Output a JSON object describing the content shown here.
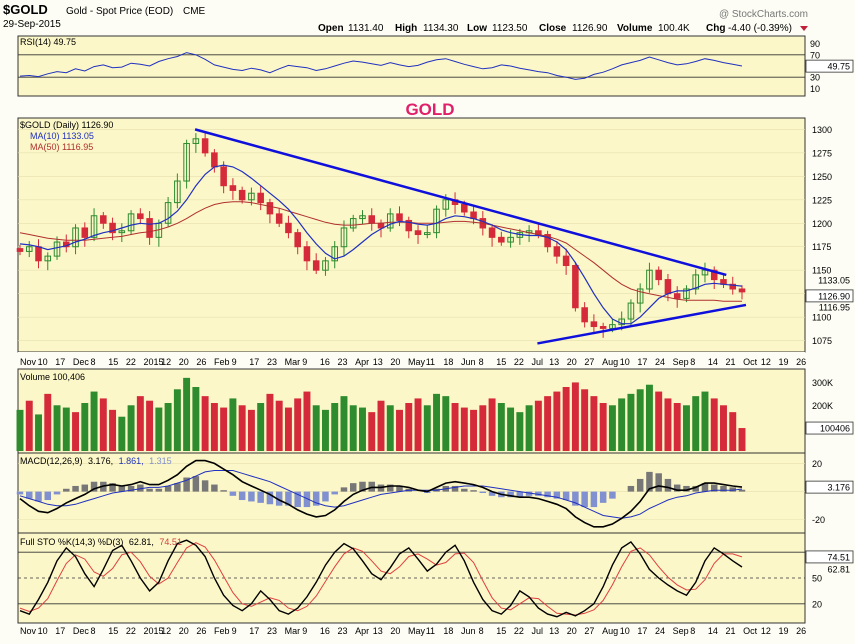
{
  "header": {
    "symbol": "$GOLD",
    "description": "Gold - Spot Price (EOD)",
    "exchange": "CME",
    "date": "29-Sep-2015",
    "watermark": "@ StockCharts.com",
    "open_label": "Open",
    "open": "1131.40",
    "high_label": "High",
    "high": "1134.30",
    "low_label": "Low",
    "low": "1123.50",
    "close_label": "Close",
    "close": "1126.90",
    "volume_label": "Volume",
    "volume": "100.4K",
    "chg_label": "Chg",
    "chg": "-4.40 (-0.39%)"
  },
  "annotation": "GOLD",
  "colors": {
    "background": "#fbf7c8",
    "up": "#2e8b2e",
    "down": "#d42a3a",
    "ma10": "#2030c0",
    "ma50": "#b03030",
    "trendline": "#1010dd",
    "title_red": "#e0206a",
    "fill_blue": "#8090d0"
  },
  "chart_data": [
    {
      "id": "rsi",
      "type": "line",
      "title": "RSI(14) 49.75",
      "value_label": "49.75",
      "ylim": [
        0,
        100
      ],
      "ticks": [
        "90",
        "70",
        "30",
        "10"
      ],
      "overbought": 70,
      "oversold": 30,
      "values": [
        32,
        33,
        31,
        36,
        40,
        38,
        45,
        41,
        49,
        52,
        47,
        48,
        55,
        53,
        50,
        58,
        63,
        67,
        74,
        70,
        62,
        52,
        48,
        44,
        42,
        46,
        43,
        38,
        45,
        51,
        49,
        47,
        42,
        45,
        50,
        55,
        59,
        57,
        54,
        51,
        56,
        52,
        49,
        51,
        57,
        61,
        63,
        58,
        53,
        49,
        45,
        47,
        52,
        50,
        46,
        43,
        40,
        38,
        33,
        30,
        26,
        28,
        35,
        39,
        45,
        52,
        56,
        60,
        66,
        61,
        56,
        52,
        54,
        58,
        63,
        60,
        56,
        53,
        50
      ]
    },
    {
      "id": "price",
      "type": "candlestick",
      "title": "$GOLD (Daily) 1126.90",
      "ma10_label": "MA(10) 1133.05",
      "ma50_label": "MA(50) 1116.95",
      "ylim": [
        1065,
        1310
      ],
      "y_ticks": [
        "1300",
        "1275",
        "1250",
        "1225",
        "1200",
        "1175",
        "1150",
        "1125",
        "1100",
        "1075"
      ],
      "right_labels": [
        "1133.05",
        "1126.90",
        "1116.95"
      ],
      "x_tick_labels": [
        "Nov",
        "10",
        "17",
        "Dec",
        "8",
        "15",
        "22",
        "2015",
        "12",
        "20",
        "26",
        "Feb",
        "9",
        "17",
        "23",
        "Mar",
        "9",
        "16",
        "23",
        "Apr",
        "13",
        "20",
        "May",
        "11",
        "18",
        "Jun",
        "8",
        "15",
        "22",
        "Jul",
        "13",
        "20",
        "27",
        "Aug",
        "10",
        "17",
        "24",
        "Sep",
        "8",
        "14",
        "21",
        "Oct",
        "12",
        "19",
        "26"
      ],
      "close": [
        1170,
        1175,
        1160,
        1165,
        1180,
        1175,
        1195,
        1185,
        1208,
        1200,
        1190,
        1192,
        1210,
        1205,
        1185,
        1200,
        1222,
        1245,
        1285,
        1290,
        1275,
        1260,
        1240,
        1235,
        1225,
        1232,
        1222,
        1210,
        1200,
        1190,
        1175,
        1160,
        1150,
        1160,
        1175,
        1195,
        1205,
        1208,
        1200,
        1195,
        1210,
        1203,
        1192,
        1188,
        1190,
        1215,
        1225,
        1220,
        1212,
        1205,
        1195,
        1185,
        1180,
        1185,
        1190,
        1192,
        1188,
        1175,
        1165,
        1155,
        1110,
        1095,
        1090,
        1088,
        1092,
        1098,
        1115,
        1130,
        1150,
        1140,
        1125,
        1120,
        1130,
        1145,
        1150,
        1140,
        1135,
        1130,
        1126.9
      ],
      "ma10": [
        1178,
        1177,
        1175,
        1172,
        1174,
        1176,
        1180,
        1183,
        1187,
        1190,
        1192,
        1195,
        1198,
        1200,
        1199,
        1200,
        1205,
        1213,
        1225,
        1240,
        1252,
        1260,
        1262,
        1260,
        1255,
        1248,
        1240,
        1232,
        1224,
        1215,
        1203,
        1190,
        1178,
        1168,
        1162,
        1165,
        1172,
        1180,
        1188,
        1194,
        1199,
        1202,
        1201,
        1199,
        1198,
        1200,
        1205,
        1208,
        1207,
        1205,
        1202,
        1198,
        1193,
        1190,
        1188,
        1187,
        1187,
        1185,
        1180,
        1172,
        1158,
        1142,
        1125,
        1110,
        1098,
        1093,
        1093,
        1100,
        1110,
        1120,
        1125,
        1128,
        1128,
        1131,
        1135,
        1136,
        1135,
        1134,
        1133.05
      ],
      "ma50": [
        1190,
        1188,
        1186,
        1184,
        1183,
        1182,
        1182,
        1182,
        1183,
        1184,
        1185,
        1186,
        1188,
        1190,
        1191,
        1193,
        1196,
        1200,
        1205,
        1211,
        1216,
        1220,
        1222,
        1223,
        1223,
        1222,
        1220,
        1218,
        1216,
        1213,
        1210,
        1207,
        1204,
        1201,
        1199,
        1198,
        1198,
        1199,
        1200,
        1200,
        1201,
        1201,
        1201,
        1200,
        1200,
        1200,
        1201,
        1202,
        1202,
        1201,
        1200,
        1198,
        1196,
        1194,
        1192,
        1190,
        1188,
        1186,
        1183,
        1179,
        1172,
        1165,
        1158,
        1150,
        1142,
        1135,
        1130,
        1127,
        1125,
        1123,
        1121,
        1119,
        1118,
        1118,
        1118,
        1118,
        1117,
        1117,
        1116.95
      ],
      "trendline_upper": [
        [
          0.225,
          1300
        ],
        [
          0.9,
          1145
        ]
      ],
      "trendline_lower": [
        [
          0.66,
          1072
        ],
        [
          0.925,
          1113
        ]
      ]
    },
    {
      "id": "volume",
      "type": "bar",
      "title": "Volume 100,406",
      "value_label": "100406",
      "ylim": [
        0,
        350000
      ],
      "ticks": [
        "300K",
        "200K",
        "100K"
      ],
      "values": [
        180000,
        220000,
        160000,
        250000,
        200000,
        190000,
        170000,
        210000,
        260000,
        230000,
        180000,
        150000,
        200000,
        240000,
        220000,
        190000,
        210000,
        270000,
        320000,
        280000,
        240000,
        210000,
        190000,
        230000,
        200000,
        180000,
        210000,
        250000,
        220000,
        190000,
        230000,
        260000,
        200000,
        180000,
        210000,
        240000,
        200000,
        190000,
        170000,
        220000,
        200000,
        180000,
        210000,
        230000,
        200000,
        250000,
        240000,
        210000,
        190000,
        180000,
        200000,
        230000,
        210000,
        190000,
        170000,
        200000,
        220000,
        240000,
        260000,
        280000,
        300000,
        270000,
        240000,
        210000,
        200000,
        230000,
        250000,
        270000,
        290000,
        260000,
        230000,
        210000,
        200000,
        240000,
        260000,
        230000,
        200000,
        170000,
        100406
      ],
      "up": [
        true,
        false,
        true,
        false,
        true,
        true,
        false,
        true,
        true,
        false,
        false,
        true,
        true,
        false,
        false,
        true,
        true,
        true,
        true,
        true,
        false,
        false,
        false,
        true,
        false,
        false,
        true,
        false,
        false,
        false,
        false,
        false,
        true,
        true,
        true,
        true,
        true,
        true,
        false,
        false,
        true,
        false,
        false,
        false,
        true,
        true,
        true,
        false,
        false,
        false,
        false,
        false,
        true,
        true,
        true,
        true,
        false,
        false,
        false,
        false,
        false,
        false,
        false,
        false,
        true,
        true,
        true,
        true,
        true,
        false,
        false,
        false,
        true,
        true,
        true,
        false,
        false,
        false,
        false
      ]
    },
    {
      "id": "macd",
      "type": "line",
      "title": "MACD(12,26,9)",
      "macd_label": "3.176,",
      "signal_label": "1.861,",
      "hist_label": "1.315",
      "value_label": "3.176",
      "ylim": [
        -28,
        26
      ],
      "ticks": [
        "20",
        "0",
        "-20"
      ],
      "macd": [
        -5,
        -10,
        -14,
        -15,
        -12,
        -8,
        -5,
        -2,
        2,
        4,
        5,
        4,
        5,
        7,
        5,
        5,
        8,
        12,
        18,
        22,
        22,
        20,
        16,
        12,
        7,
        4,
        1,
        -2,
        -6,
        -9,
        -13,
        -16,
        -18,
        -17,
        -13,
        -7,
        -2,
        1,
        3,
        3,
        4,
        4,
        3,
        1,
        0,
        3,
        6,
        7,
        6,
        5,
        3,
        0,
        -2,
        -3,
        -4,
        -4,
        -5,
        -7,
        -9,
        -12,
        -18,
        -22,
        -25,
        -25,
        -23,
        -19,
        -14,
        -7,
        2,
        4,
        3,
        1,
        1,
        3,
        6,
        6,
        5,
        4,
        3.176
      ],
      "signal": [
        -3,
        -5,
        -7,
        -9,
        -10,
        -10,
        -9,
        -7,
        -5,
        -3,
        -1,
        0,
        1,
        2,
        3,
        3,
        4,
        6,
        8,
        11,
        14,
        15,
        15,
        15,
        13,
        11,
        9,
        7,
        4,
        1,
        -2,
        -5,
        -8,
        -10,
        -11,
        -10,
        -8,
        -6,
        -4,
        -2,
        -1,
        0,
        1,
        1,
        1,
        1,
        2,
        3,
        4,
        4,
        4,
        3,
        2,
        1,
        0,
        -1,
        -2,
        -3,
        -4,
        -6,
        -8,
        -11,
        -14,
        -17,
        -18,
        -19,
        -18,
        -16,
        -12,
        -9,
        -6,
        -4,
        -3,
        -1,
        0,
        1,
        1,
        1,
        1.861
      ]
    },
    {
      "id": "sto",
      "type": "line",
      "title": "Full STO %K(14,3) %D(3)",
      "k_label": "62.81,",
      "d_label": "74.51",
      "right_labels": [
        "74.51",
        "62.81"
      ],
      "ylim": [
        0,
        100
      ],
      "ticks": [
        "80",
        "50",
        "20"
      ],
      "k": [
        12,
        8,
        25,
        45,
        70,
        85,
        75,
        55,
        40,
        60,
        82,
        88,
        70,
        50,
        35,
        45,
        70,
        90,
        94,
        88,
        75,
        50,
        30,
        18,
        12,
        20,
        35,
        25,
        12,
        8,
        15,
        28,
        45,
        65,
        80,
        90,
        84,
        70,
        55,
        48,
        62,
        78,
        85,
        72,
        58,
        66,
        80,
        88,
        70,
        45,
        25,
        12,
        8,
        18,
        35,
        28,
        15,
        8,
        5,
        10,
        6,
        12,
        20,
        40,
        65,
        85,
        92,
        78,
        60,
        50,
        42,
        35,
        30,
        45,
        70,
        85,
        78,
        70,
        62.81
      ],
      "d": [
        15,
        11,
        15,
        26,
        47,
        67,
        77,
        72,
        57,
        52,
        61,
        77,
        80,
        69,
        52,
        43,
        50,
        68,
        85,
        91,
        86,
        71,
        52,
        33,
        20,
        17,
        22,
        27,
        24,
        15,
        12,
        17,
        29,
        46,
        63,
        78,
        85,
        81,
        70,
        58,
        55,
        63,
        75,
        78,
        72,
        65,
        68,
        78,
        79,
        68,
        47,
        27,
        15,
        13,
        20,
        27,
        26,
        17,
        9,
        8,
        7,
        9,
        13,
        24,
        42,
        63,
        81,
        85,
        77,
        63,
        51,
        42,
        36,
        37,
        48,
        67,
        78,
        78,
        74.51
      ]
    }
  ]
}
